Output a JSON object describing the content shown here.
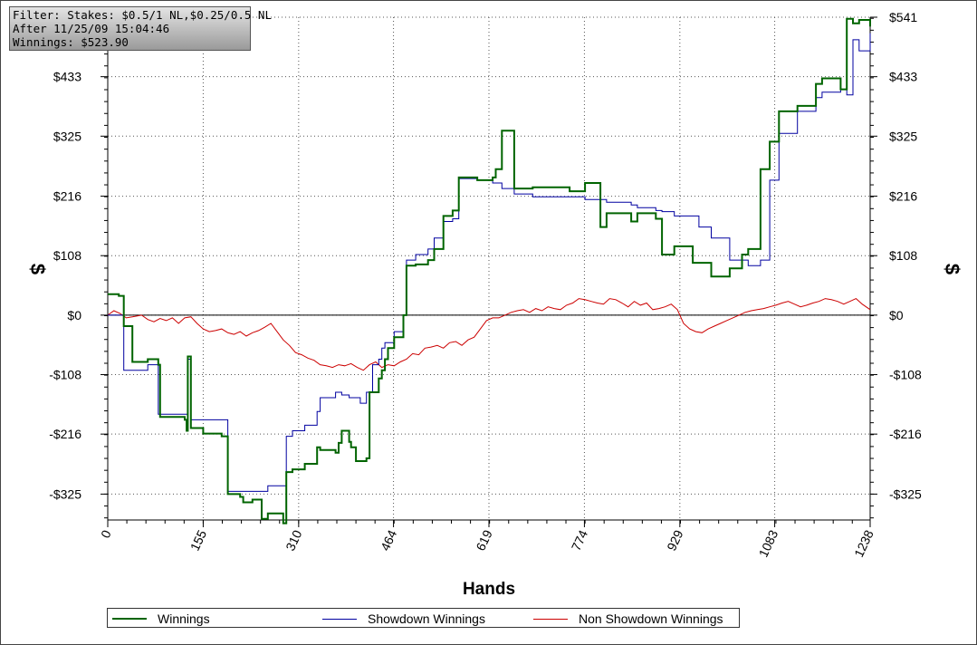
{
  "info": {
    "filter": "Filter: Stakes: $0.5/1 NL,$0.25/0.5 NL",
    "after": "After 11/25/09 15:04:46",
    "winnings": "Winnings: $523.90"
  },
  "chart_data": {
    "type": "line",
    "xlabel": "Hands",
    "ylabel": "$",
    "xlim": [
      0,
      1238
    ],
    "ylim": [
      -372,
      541
    ],
    "x_ticks": [
      0,
      155,
      310,
      464,
      619,
      774,
      929,
      1083,
      1238
    ],
    "y_ticks": [
      541,
      433,
      325,
      216,
      108,
      0,
      -108,
      -216,
      -325
    ],
    "y_tick_labels": [
      "$541",
      "$433",
      "$325",
      "$216",
      "$108",
      "$0",
      "-$108",
      "-$216",
      "-$325"
    ],
    "grid": true,
    "legend_position": "bottom",
    "colors": {
      "winnings": "#006400",
      "showdown": "#0000a0",
      "non_showdown": "#cc0000"
    },
    "series": [
      {
        "name": "Winnings",
        "x": [
          0,
          18,
          26,
          40,
          65,
          82,
          85,
          125,
          128,
          130,
          135,
          155,
          185,
          195,
          215,
          220,
          235,
          250,
          260,
          285,
          290,
          300,
          320,
          340,
          345,
          370,
          375,
          380,
          392,
          395,
          403,
          420,
          425,
          430,
          440,
          445,
          450,
          455,
          465,
          480,
          485,
          500,
          520,
          530,
          545,
          560,
          570,
          600,
          625,
          630,
          640,
          660,
          690,
          750,
          775,
          800,
          810,
          850,
          860,
          890,
          900,
          920,
          950,
          980,
          1010,
          1030,
          1040,
          1060,
          1075,
          1090,
          1120,
          1150,
          1160,
          1190,
          1200,
          1210,
          1220,
          1238
        ],
        "y": [
          38,
          35,
          -20,
          -85,
          -80,
          -90,
          -185,
          -190,
          -210,
          -75,
          -205,
          -215,
          -220,
          -325,
          -330,
          -340,
          -335,
          -370,
          -360,
          -378,
          -285,
          -280,
          -270,
          -240,
          -245,
          -250,
          -232,
          -210,
          -230,
          -240,
          -265,
          -260,
          -140,
          -140,
          -115,
          -100,
          -80,
          -60,
          -40,
          0,
          90,
          92,
          100,
          120,
          180,
          190,
          250,
          245,
          250,
          265,
          335,
          230,
          232,
          225,
          240,
          160,
          185,
          170,
          185,
          175,
          110,
          125,
          95,
          70,
          85,
          110,
          120,
          265,
          315,
          370,
          380,
          420,
          430,
          410,
          538,
          530,
          536,
          524
        ]
      },
      {
        "name": "Showdown Winnings",
        "x": [
          0,
          18,
          26,
          40,
          65,
          82,
          85,
          125,
          130,
          135,
          155,
          185,
          195,
          215,
          240,
          260,
          285,
          290,
          300,
          320,
          340,
          345,
          370,
          380,
          392,
          400,
          410,
          420,
          430,
          440,
          445,
          450,
          465,
          480,
          485,
          500,
          520,
          530,
          545,
          560,
          570,
          600,
          625,
          640,
          660,
          690,
          750,
          775,
          800,
          810,
          850,
          860,
          890,
          900,
          920,
          960,
          980,
          1010,
          1040,
          1060,
          1075,
          1090,
          1120,
          1150,
          1160,
          1190,
          1200,
          1210,
          1220,
          1238
        ],
        "y": [
          0,
          0,
          -100,
          -100,
          -90,
          -180,
          -180,
          -180,
          -80,
          -190,
          -190,
          -190,
          -320,
          -320,
          -320,
          -310,
          -310,
          -220,
          -210,
          -200,
          -175,
          -150,
          -140,
          -145,
          -150,
          -150,
          -160,
          -140,
          -90,
          -80,
          -60,
          -50,
          -30,
          0,
          100,
          110,
          120,
          140,
          170,
          175,
          248,
          245,
          240,
          230,
          220,
          215,
          215,
          210,
          210,
          205,
          200,
          195,
          190,
          188,
          180,
          160,
          140,
          100,
          90,
          100,
          245,
          330,
          370,
          395,
          405,
          410,
          400,
          500,
          480,
          512
        ]
      },
      {
        "name": "Non Showdown Winnings",
        "x": [
          0,
          10,
          20,
          30,
          40,
          55,
          65,
          75,
          85,
          95,
          105,
          115,
          125,
          135,
          145,
          155,
          165,
          175,
          185,
          195,
          205,
          215,
          225,
          235,
          245,
          255,
          265,
          275,
          285,
          295,
          305,
          315,
          325,
          335,
          345,
          355,
          365,
          375,
          385,
          395,
          405,
          415,
          425,
          435,
          445,
          455,
          465,
          475,
          485,
          495,
          505,
          515,
          525,
          535,
          545,
          555,
          565,
          575,
          585,
          595,
          605,
          615,
          625,
          635,
          645,
          655,
          665,
          675,
          685,
          695,
          705,
          715,
          725,
          735,
          745,
          755,
          765,
          775,
          785,
          795,
          805,
          815,
          825,
          835,
          845,
          855,
          865,
          875,
          885,
          895,
          905,
          915,
          925,
          935,
          945,
          955,
          965,
          975,
          985,
          995,
          1005,
          1015,
          1025,
          1035,
          1045,
          1055,
          1065,
          1075,
          1085,
          1095,
          1105,
          1115,
          1125,
          1135,
          1145,
          1155,
          1165,
          1175,
          1185,
          1195,
          1205,
          1215,
          1225,
          1238
        ],
        "y": [
          0,
          8,
          3,
          -5,
          -3,
          0,
          -8,
          -12,
          -6,
          -10,
          -5,
          -15,
          -5,
          -3,
          -15,
          -25,
          -30,
          -28,
          -25,
          -32,
          -35,
          -30,
          -38,
          -32,
          -28,
          -22,
          -15,
          -30,
          -45,
          -55,
          -68,
          -72,
          -78,
          -82,
          -90,
          -92,
          -95,
          -90,
          -92,
          -88,
          -95,
          -100,
          -90,
          -85,
          -95,
          -90,
          -92,
          -85,
          -80,
          -70,
          -72,
          -60,
          -58,
          -55,
          -60,
          -50,
          -48,
          -55,
          -45,
          -40,
          -25,
          -10,
          -5,
          -5,
          0,
          5,
          8,
          10,
          5,
          12,
          8,
          15,
          12,
          10,
          18,
          22,
          30,
          28,
          25,
          22,
          20,
          30,
          28,
          22,
          15,
          25,
          18,
          22,
          10,
          12,
          15,
          20,
          10,
          -15,
          -25,
          -30,
          -32,
          -25,
          -20,
          -15,
          -10,
          -5,
          0,
          5,
          8,
          10,
          12,
          15,
          18,
          22,
          25,
          20,
          15,
          18,
          22,
          25,
          30,
          28,
          25,
          20,
          25,
          30,
          20,
          10
        ]
      }
    ]
  }
}
